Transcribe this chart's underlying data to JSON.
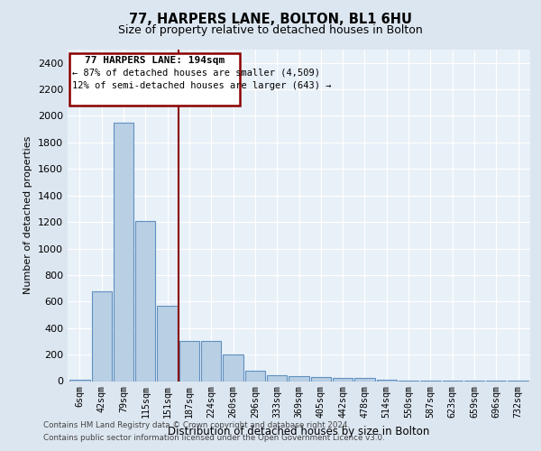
{
  "title1": "77, HARPERS LANE, BOLTON, BL1 6HU",
  "title2": "Size of property relative to detached houses in Bolton",
  "xlabel": "Distribution of detached houses by size in Bolton",
  "ylabel": "Number of detached properties",
  "bar_labels": [
    "6sqm",
    "42sqm",
    "79sqm",
    "115sqm",
    "151sqm",
    "187sqm",
    "224sqm",
    "260sqm",
    "296sqm",
    "333sqm",
    "369sqm",
    "405sqm",
    "442sqm",
    "478sqm",
    "514sqm",
    "550sqm",
    "587sqm",
    "623sqm",
    "659sqm",
    "696sqm",
    "732sqm"
  ],
  "bar_values": [
    10,
    680,
    1950,
    1210,
    570,
    300,
    300,
    200,
    75,
    45,
    38,
    28,
    25,
    22,
    12,
    5,
    5,
    3,
    2,
    2,
    1
  ],
  "bar_color": "#b8cfe4",
  "bar_edge_color": "#6090c0",
  "vline_x": 4.5,
  "annotation_text1": "77 HARPERS LANE: 194sqm",
  "annotation_text2": "← 87% of detached houses are smaller (4,509)",
  "annotation_text3": "12% of semi-detached houses are larger (643) →",
  "ylim": [
    0,
    2500
  ],
  "yticks": [
    0,
    200,
    400,
    600,
    800,
    1000,
    1200,
    1400,
    1600,
    1800,
    2000,
    2200,
    2400
  ],
  "footer1": "Contains HM Land Registry data © Crown copyright and database right 2024.",
  "footer2": "Contains public sector information licensed under the Open Government Licence v3.0.",
  "bg_color": "#dce6f0",
  "plot_bg_color": "#e8f0f8"
}
